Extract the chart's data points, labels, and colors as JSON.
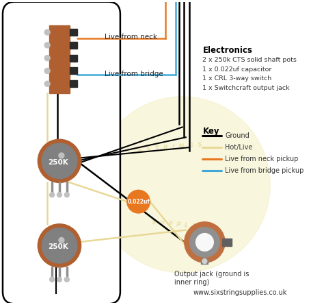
{
  "bg_color": "#ffffff",
  "watermark_color": "#f5f0c8",
  "electronics_title": "Electronics",
  "electronics_items": [
    "2 x 250k CTS solid shaft pots",
    "1 x 0.022uf capacitor",
    "1 x CRL 3-way switch",
    "1 x Switchcraft output jack"
  ],
  "key_title": "Key",
  "key_items": [
    {
      "label": "Ground",
      "color": "#000000"
    },
    {
      "label": "Hot/Live",
      "color": "#e8d898"
    },
    {
      "label": "Live from neck pickup",
      "color": "#e87820"
    },
    {
      "label": "Live from bridge pickup",
      "color": "#40a8d8"
    }
  ],
  "label_live_neck": "Live from neck",
  "label_live_bridge": "Live from bridge",
  "label_pot1": "250K",
  "label_pot2": "250K",
  "label_cap": "0.022uf",
  "label_jack": "Output jack (ground is\ninner ring)",
  "website": "www.sixstringsupplies.co.uk",
  "body_outline_color": "#000000",
  "switch_color": "#b06030",
  "pot_body_color": "#808080",
  "pot_base_color": "#b06030",
  "cap_color": "#e87820",
  "jack_outer_color": "#c07040",
  "jack_inner_color": "#f8f8f8",
  "wire_ground": "#000000",
  "wire_hot": "#e8d898",
  "wire_neck": "#e87820",
  "wire_bridge": "#40a8d8"
}
